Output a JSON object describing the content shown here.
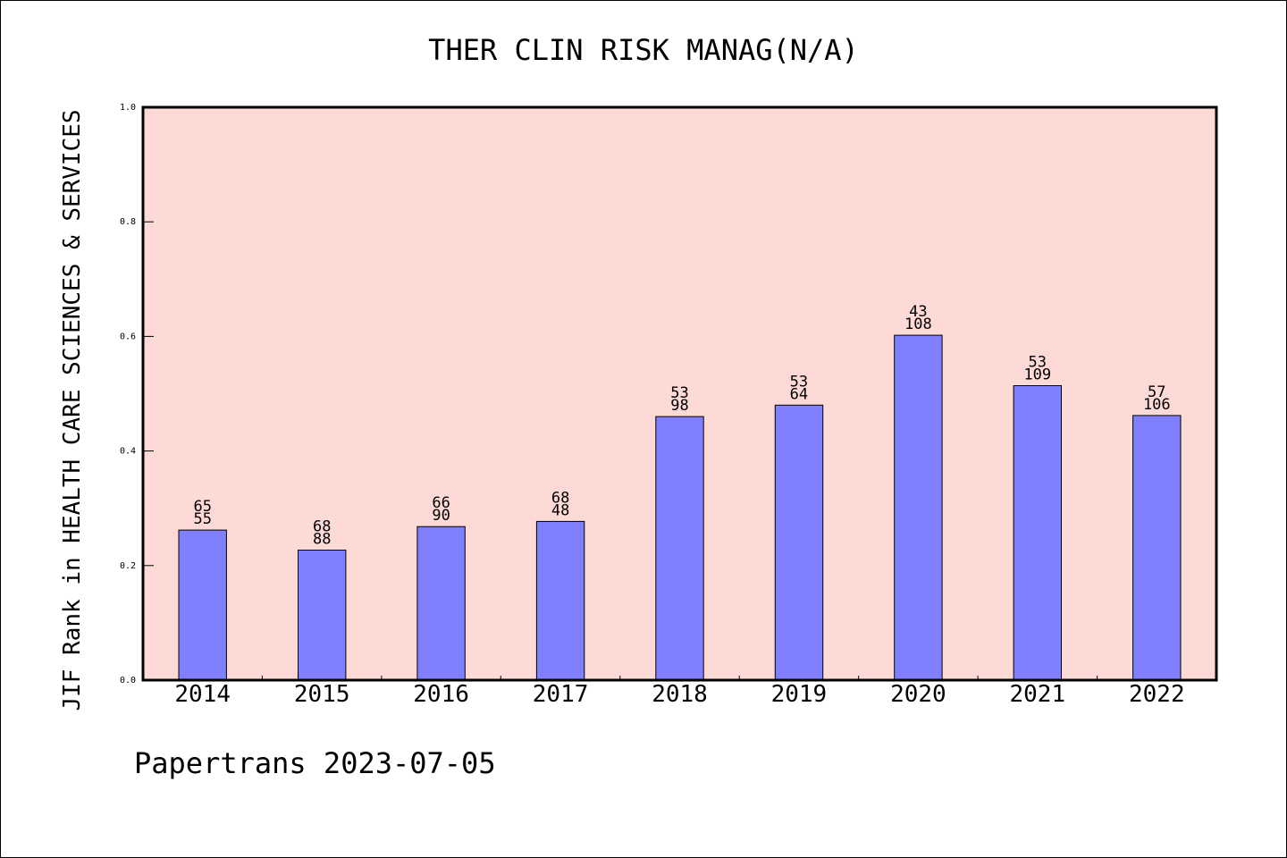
{
  "chart_data": {
    "type": "bar",
    "title": "THER CLIN RISK MANAG(N/A)",
    "xlabel": "",
    "ylabel": "JIF Rank in HEALTH CARE SCIENCES & SERVICES",
    "ylim": [
      0.0,
      1.0
    ],
    "yticks": [
      "0.0",
      "0.2",
      "0.4",
      "0.6",
      "0.8",
      "1.0"
    ],
    "categories": [
      "2014",
      "2015",
      "2016",
      "2017",
      "2018",
      "2019",
      "2020",
      "2021",
      "2022"
    ],
    "values": [
      0.262,
      0.227,
      0.268,
      0.277,
      0.46,
      0.48,
      0.602,
      0.514,
      0.462
    ],
    "label_top": [
      "65",
      "68",
      "66",
      "68",
      "53",
      "53",
      "43",
      "53",
      "57"
    ],
    "label_bottom": [
      "55",
      "88",
      "90",
      "48",
      "98",
      "64",
      "108",
      "109",
      "106"
    ],
    "grid": false,
    "colors": {
      "bar": "#8080ff",
      "plot_background": "#fddad6"
    }
  },
  "footer": {
    "text": "Papertrans 2023-07-05"
  }
}
